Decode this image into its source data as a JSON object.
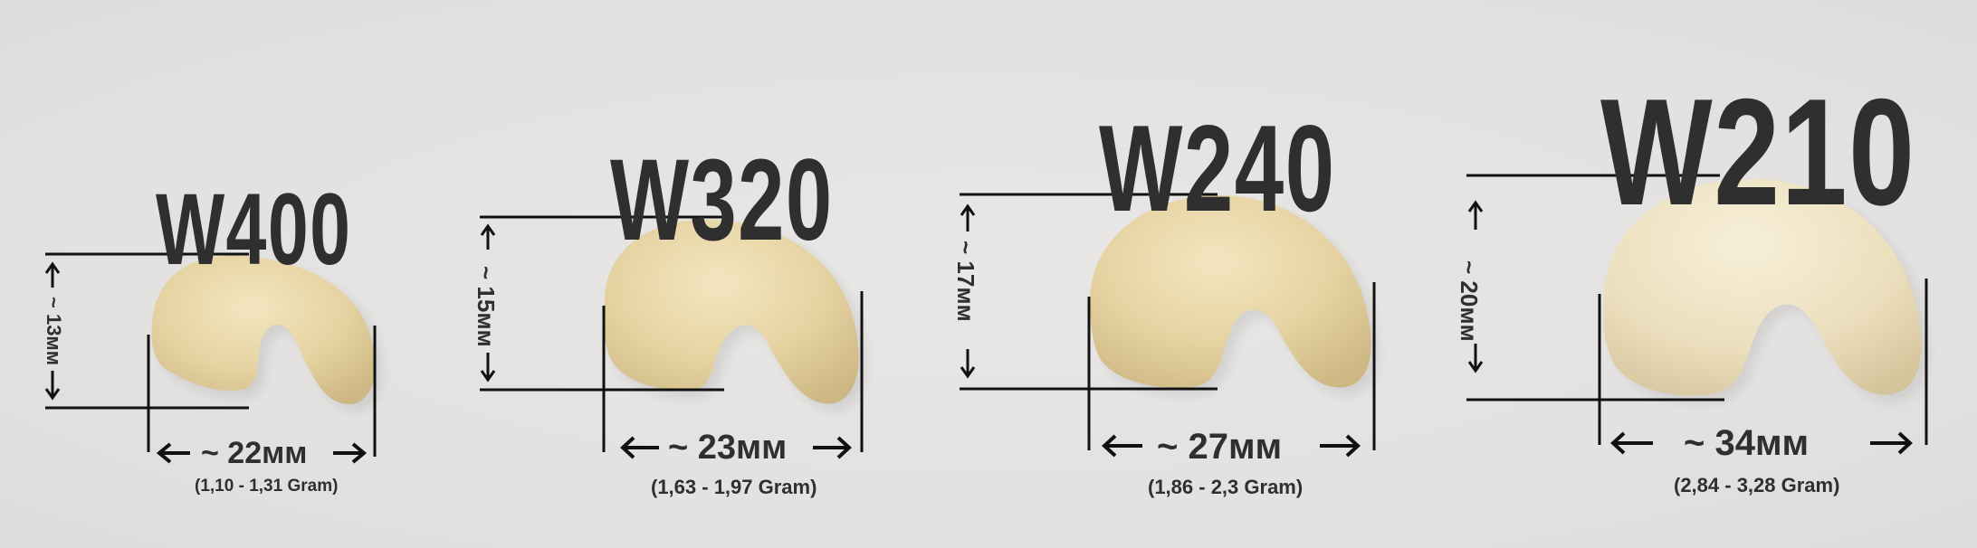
{
  "grades": [
    {
      "name": "W400",
      "width": "~ 22мм",
      "height": "~ 13мм",
      "weight": "(1,10 - 1,31 Gram)"
    },
    {
      "name": "W320",
      "width": "~ 23мм",
      "height": "~ 15мм",
      "weight": "(1,63 - 1,97 Gram)"
    },
    {
      "name": "W240",
      "width": "~ 27мм",
      "height": "~ 17мм",
      "weight": "(1,86 - 2,3 Gram)"
    },
    {
      "name": "W210",
      "width": "~ 34мм",
      "height": "~ 20мм",
      "weight": "(2,84 - 3,28 Gram)"
    }
  ],
  "colors": {
    "background": "#e4e3e1",
    "text": "#2f2f2f",
    "cashew": "#e9d9ad",
    "cashew_shadow": "#cdbb8b"
  }
}
